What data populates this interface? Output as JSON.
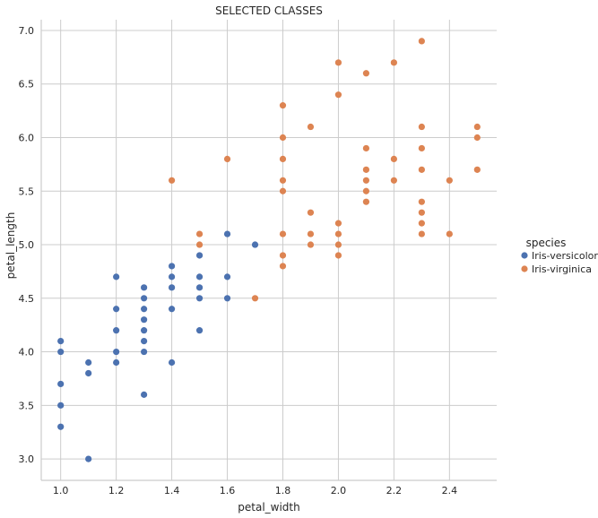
{
  "chart_data": {
    "type": "scatter",
    "title": "SELECTED CLASSES",
    "xlabel": "petal_width",
    "ylabel": "petal_length",
    "xlim": [
      0.93,
      2.57
    ],
    "ylim": [
      2.8,
      7.1
    ],
    "xticks": [
      "1.0",
      "1.2",
      "1.4",
      "1.6",
      "1.8",
      "2.0",
      "2.2",
      "2.4"
    ],
    "yticks": [
      "3.0",
      "3.5",
      "4.0",
      "4.5",
      "5.0",
      "5.5",
      "6.0",
      "6.5",
      "7.0"
    ],
    "grid": true,
    "legend": {
      "title": "species",
      "placement": "right"
    },
    "series": [
      {
        "name": "Iris-versicolor",
        "color": "#4c72b0",
        "points": [
          [
            1.0,
            3.3
          ],
          [
            1.0,
            3.5
          ],
          [
            1.0,
            3.7
          ],
          [
            1.0,
            4.0
          ],
          [
            1.0,
            4.1
          ],
          [
            1.1,
            3.0
          ],
          [
            1.1,
            3.8
          ],
          [
            1.1,
            3.9
          ],
          [
            1.2,
            3.9
          ],
          [
            1.2,
            4.0
          ],
          [
            1.2,
            4.2
          ],
          [
            1.2,
            4.4
          ],
          [
            1.2,
            4.7
          ],
          [
            1.3,
            3.6
          ],
          [
            1.3,
            4.0
          ],
          [
            1.3,
            4.1
          ],
          [
            1.3,
            4.2
          ],
          [
            1.3,
            4.3
          ],
          [
            1.3,
            4.4
          ],
          [
            1.3,
            4.5
          ],
          [
            1.3,
            4.6
          ],
          [
            1.4,
            3.9
          ],
          [
            1.4,
            4.4
          ],
          [
            1.4,
            4.6
          ],
          [
            1.4,
            4.7
          ],
          [
            1.4,
            4.8
          ],
          [
            1.5,
            4.2
          ],
          [
            1.5,
            4.5
          ],
          [
            1.5,
            4.6
          ],
          [
            1.5,
            4.7
          ],
          [
            1.5,
            4.9
          ],
          [
            1.6,
            4.5
          ],
          [
            1.6,
            4.7
          ],
          [
            1.6,
            5.1
          ],
          [
            1.7,
            5.0
          ]
        ]
      },
      {
        "name": "Iris-virginica",
        "color": "#dd8452",
        "points": [
          [
            1.4,
            5.6
          ],
          [
            1.5,
            5.0
          ],
          [
            1.5,
            5.1
          ],
          [
            1.6,
            5.8
          ],
          [
            1.7,
            4.5
          ],
          [
            1.8,
            4.8
          ],
          [
            1.8,
            4.9
          ],
          [
            1.8,
            5.1
          ],
          [
            1.8,
            5.5
          ],
          [
            1.8,
            5.6
          ],
          [
            1.8,
            5.8
          ],
          [
            1.8,
            6.0
          ],
          [
            1.8,
            6.3
          ],
          [
            1.9,
            5.0
          ],
          [
            1.9,
            5.1
          ],
          [
            1.9,
            5.3
          ],
          [
            1.9,
            6.1
          ],
          [
            2.0,
            4.9
          ],
          [
            2.0,
            5.0
          ],
          [
            2.0,
            5.1
          ],
          [
            2.0,
            5.2
          ],
          [
            2.0,
            6.4
          ],
          [
            2.0,
            6.7
          ],
          [
            2.1,
            5.4
          ],
          [
            2.1,
            5.5
          ],
          [
            2.1,
            5.6
          ],
          [
            2.1,
            5.7
          ],
          [
            2.1,
            5.9
          ],
          [
            2.1,
            6.6
          ],
          [
            2.2,
            5.6
          ],
          [
            2.2,
            5.8
          ],
          [
            2.2,
            6.7
          ],
          [
            2.3,
            5.1
          ],
          [
            2.3,
            5.2
          ],
          [
            2.3,
            5.3
          ],
          [
            2.3,
            5.4
          ],
          [
            2.3,
            5.7
          ],
          [
            2.3,
            5.9
          ],
          [
            2.3,
            6.1
          ],
          [
            2.3,
            6.9
          ],
          [
            2.4,
            5.1
          ],
          [
            2.4,
            5.6
          ],
          [
            2.5,
            5.7
          ],
          [
            2.5,
            6.0
          ],
          [
            2.5,
            6.1
          ]
        ]
      }
    ]
  }
}
